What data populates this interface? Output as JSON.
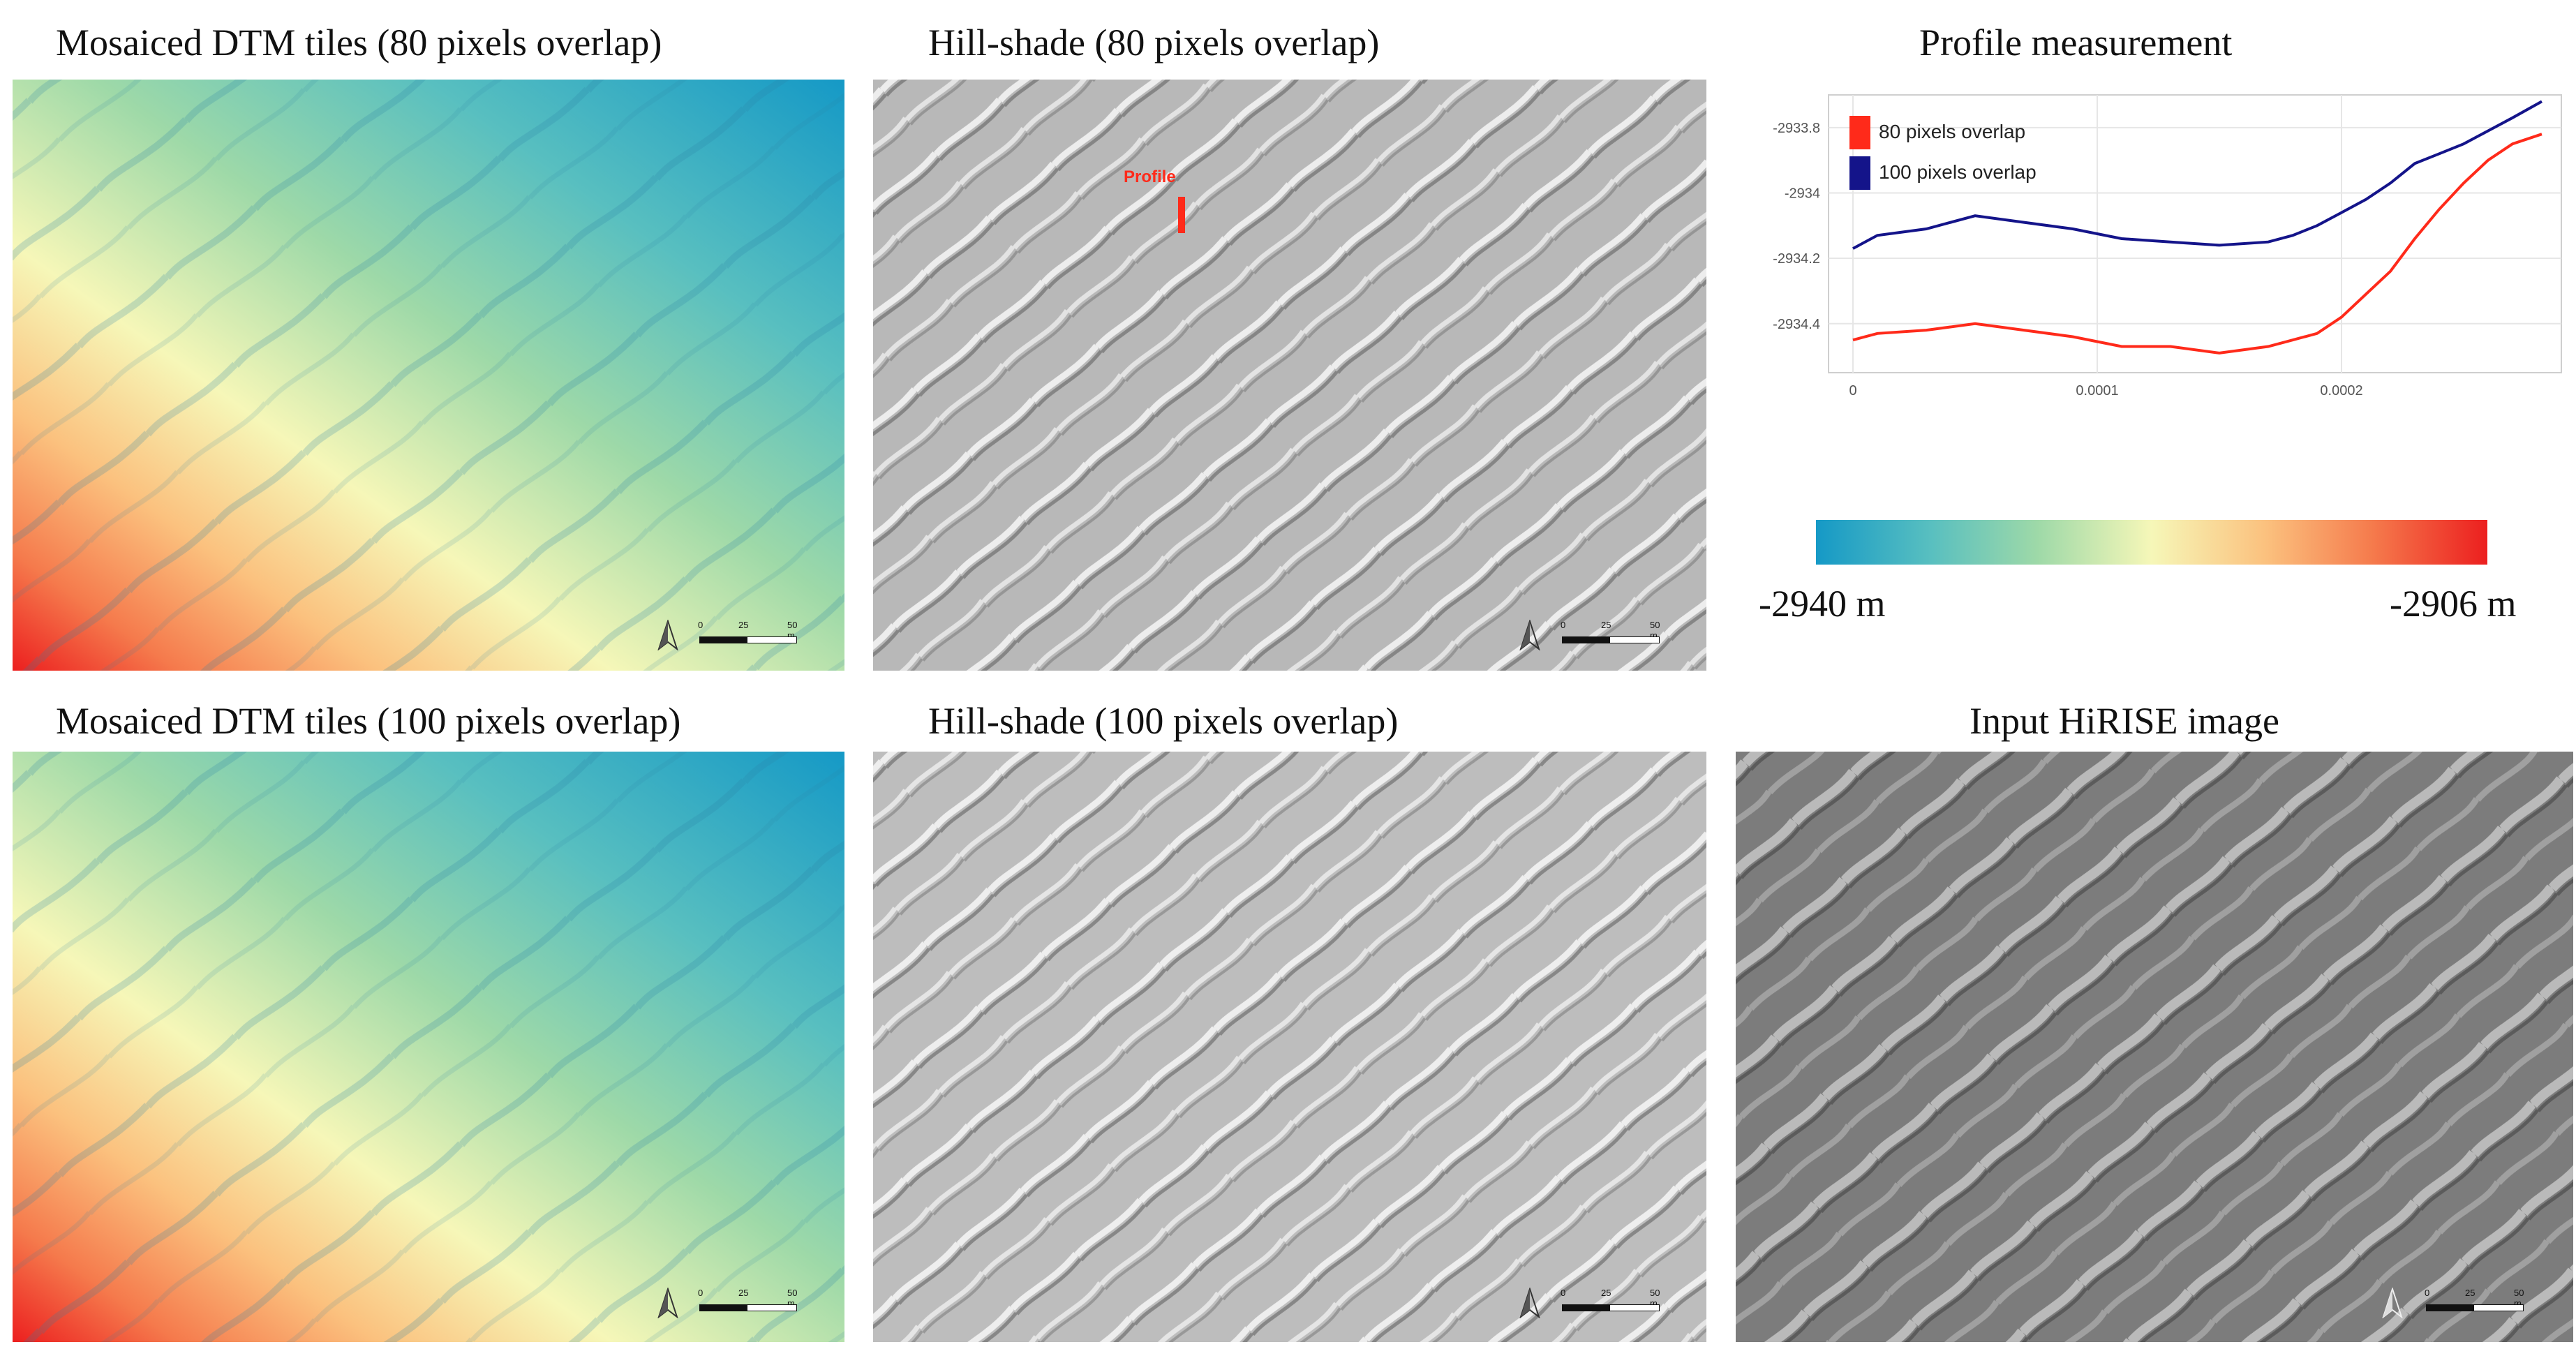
{
  "panels": {
    "dtm80": {
      "title": "Mosaiced DTM tiles (80 pixels overlap)"
    },
    "hill80": {
      "title": "Hill-shade (80 pixels overlap)",
      "profile_label": "Profile"
    },
    "profile": {
      "title": "Profile measurement"
    },
    "dtm100": {
      "title": "Mosaiced DTM tiles (100 pixels overlap)"
    },
    "hill100": {
      "title": "Hill-shade (100 pixels overlap)"
    },
    "hirise": {
      "title": "Input HiRISE image"
    }
  },
  "scalebar": {
    "t0": "0",
    "t1": "25",
    "t2": "50 m"
  },
  "colorbar": {
    "min_label": "-2940 m",
    "max_label": "-2906 m",
    "stops": [
      "#1599c6",
      "#58bfc0",
      "#9ed9a8",
      "#f6f7b8",
      "#fbc17e",
      "#f57a4c",
      "#ec1f1f"
    ]
  },
  "chart_data": {
    "type": "line",
    "title": "Profile measurement",
    "x_ticks": [
      "0",
      "0.0001",
      "0.0002"
    ],
    "y_ticks": [
      "-2933.8",
      "-2934",
      "-2934.2",
      "-2934.4"
    ],
    "xlim": [
      -1e-05,
      0.00029
    ],
    "ylim": [
      -2934.55,
      -2933.7
    ],
    "legend_position": "top-left",
    "series": [
      {
        "name": "80 pixels overlap",
        "color": "#ff2a1a",
        "x": [
          0,
          1e-05,
          3e-05,
          5e-05,
          7e-05,
          9e-05,
          0.00011,
          0.00013,
          0.00015,
          0.00017,
          0.00018,
          0.00019,
          0.0002,
          0.00021,
          0.00022,
          0.00023,
          0.00024,
          0.00025,
          0.00026,
          0.00027,
          0.000282
        ],
        "y": [
          -2934.45,
          -2934.43,
          -2934.42,
          -2934.4,
          -2934.42,
          -2934.44,
          -2934.47,
          -2934.47,
          -2934.49,
          -2934.47,
          -2934.45,
          -2934.43,
          -2934.38,
          -2934.31,
          -2934.24,
          -2934.14,
          -2934.05,
          -2933.97,
          -2933.9,
          -2933.85,
          -2933.82
        ]
      },
      {
        "name": "100 pixels overlap",
        "color": "#14148a",
        "x": [
          0,
          1e-05,
          3e-05,
          5e-05,
          7e-05,
          9e-05,
          0.00011,
          0.00013,
          0.00015,
          0.00017,
          0.00018,
          0.00019,
          0.0002,
          0.00021,
          0.00022,
          0.00023,
          0.00024,
          0.00025,
          0.00026,
          0.00027,
          0.000282
        ],
        "y": [
          -2934.17,
          -2934.13,
          -2934.11,
          -2934.07,
          -2934.09,
          -2934.11,
          -2934.14,
          -2934.15,
          -2934.16,
          -2934.15,
          -2934.13,
          -2934.1,
          -2934.06,
          -2934.02,
          -2933.97,
          -2933.91,
          -2933.88,
          -2933.85,
          -2933.81,
          -2933.77,
          -2933.72
        ]
      }
    ]
  }
}
